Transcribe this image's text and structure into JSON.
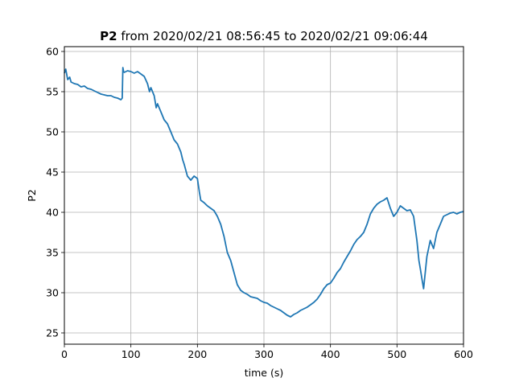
{
  "chart_data": {
    "type": "line",
    "title_bold": "P2",
    "title_rest": " from 2020/02/21 08:56:45 to 2020/02/21 09:06:44",
    "xlabel": "time (s)",
    "ylabel": "P2",
    "xlim": [
      0,
      600
    ],
    "ylim": [
      23.6,
      60.6
    ],
    "xticks": [
      0,
      100,
      200,
      300,
      400,
      500,
      600
    ],
    "yticks": [
      25,
      30,
      35,
      40,
      45,
      50,
      55,
      60
    ],
    "grid": true,
    "color": "#1f77b4",
    "series": [
      {
        "x": [
          0,
          2,
          5,
          8,
          10,
          15,
          20,
          25,
          30,
          35,
          40,
          45,
          50,
          55,
          60,
          65,
          70,
          75,
          80,
          85,
          87,
          88,
          89,
          90,
          95,
          100,
          105,
          110,
          115,
          120,
          125,
          128,
          130,
          135,
          138,
          140,
          145,
          150,
          155,
          160,
          165,
          170,
          175,
          178,
          180,
          185,
          190,
          195,
          200,
          203,
          205,
          210,
          215,
          220,
          225,
          230,
          235,
          240,
          245,
          250,
          255,
          260,
          265,
          270,
          275,
          280,
          285,
          290,
          295,
          300,
          305,
          310,
          315,
          320,
          325,
          330,
          335,
          340,
          345,
          350,
          355,
          360,
          365,
          370,
          375,
          380,
          385,
          390,
          395,
          400,
          405,
          410,
          415,
          420,
          425,
          430,
          435,
          440,
          445,
          450,
          455,
          460,
          465,
          470,
          475,
          480,
          485,
          490,
          495,
          500,
          505,
          510,
          515,
          520,
          525,
          530,
          533,
          535,
          538,
          540,
          545,
          550,
          555,
          560,
          565,
          570,
          575,
          580,
          585,
          590,
          595,
          600
        ],
        "y": [
          57.3,
          57.8,
          56.5,
          56.8,
          56.2,
          56.0,
          55.9,
          55.6,
          55.7,
          55.4,
          55.3,
          55.1,
          54.9,
          54.7,
          54.6,
          54.5,
          54.5,
          54.3,
          54.2,
          54.0,
          54.2,
          58.0,
          57.5,
          57.4,
          57.6,
          57.5,
          57.3,
          57.5,
          57.2,
          56.9,
          56.0,
          55.0,
          55.5,
          54.5,
          53.0,
          53.5,
          52.5,
          51.5,
          51.0,
          50.0,
          49.0,
          48.5,
          47.5,
          46.5,
          46.0,
          44.5,
          44.0,
          44.5,
          44.2,
          42.5,
          41.5,
          41.2,
          40.8,
          40.5,
          40.2,
          39.5,
          38.5,
          37.0,
          35.0,
          34.0,
          32.5,
          31.0,
          30.3,
          30.0,
          29.8,
          29.5,
          29.4,
          29.3,
          29.0,
          28.8,
          28.7,
          28.4,
          28.2,
          28.0,
          27.8,
          27.5,
          27.2,
          27.0,
          27.3,
          27.5,
          27.8,
          28.0,
          28.2,
          28.5,
          28.8,
          29.2,
          29.8,
          30.5,
          31.0,
          31.2,
          31.8,
          32.5,
          33.0,
          33.8,
          34.5,
          35.2,
          36.0,
          36.6,
          37.0,
          37.5,
          38.5,
          39.8,
          40.5,
          41.0,
          41.3,
          41.5,
          41.8,
          40.5,
          39.5,
          40.0,
          40.8,
          40.5,
          40.2,
          40.3,
          39.5,
          36.5,
          34.0,
          33.0,
          31.5,
          30.5,
          34.5,
          36.5,
          35.5,
          37.5,
          38.5,
          39.5,
          39.7,
          39.9,
          40.0,
          39.8,
          40.0,
          40.1
        ]
      }
    ]
  }
}
